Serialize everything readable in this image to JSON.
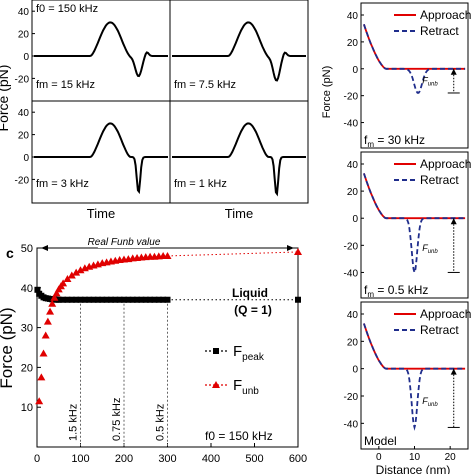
{
  "chart_data": [
    {
      "type": "line",
      "panel": "a",
      "ylabel": "Force (pN)",
      "xlabel": "Time",
      "ylim": [
        -40,
        40
      ],
      "yticks": [
        -40,
        -20,
        0,
        20,
        40
      ],
      "grid": false,
      "f0_label": "f0 = 150 kHz",
      "subplots": [
        {
          "fm_label": "fm = 15 kHz",
          "peak": 30,
          "dip": -18
        },
        {
          "fm_label": "fm = 7.5 kHz",
          "peak": 30,
          "dip": -22
        },
        {
          "fm_label": "fm = 3 kHz",
          "peak": 30,
          "dip": -32
        },
        {
          "fm_label": "fm = 1 kHz",
          "peak": 30,
          "dip": -34
        }
      ]
    },
    {
      "type": "scatter",
      "panel": "c",
      "panel_label": "c",
      "xlabel": "",
      "ylabel": "Force (pN)",
      "xlim": [
        0,
        600
      ],
      "ylim": [
        0,
        50
      ],
      "xticks": [
        0,
        100,
        200,
        300,
        400,
        500,
        600
      ],
      "yticks": [
        10,
        20,
        30,
        40,
        50
      ],
      "annotation_real": "Real Funb value",
      "real_value": 50,
      "medium": "Liquid",
      "q_label": "(Q = 1)",
      "f0_label": "f0 = 150 kHz",
      "freq_markers": [
        {
          "x": 100,
          "label": "1.5 kHz"
        },
        {
          "x": 200,
          "label": "0.75 kHz"
        },
        {
          "x": 300,
          "label": "0.5 kHz"
        }
      ],
      "legend_position": "bottom-right",
      "series": [
        {
          "name": "Fpeak",
          "color": "#000000",
          "marker": "square",
          "x": [
            1,
            5,
            10,
            15,
            20,
            25,
            30,
            35,
            40,
            45,
            50,
            60,
            70,
            80,
            90,
            100,
            110,
            120,
            130,
            140,
            150,
            160,
            170,
            180,
            190,
            200,
            210,
            220,
            230,
            240,
            250,
            260,
            270,
            280,
            290,
            300
          ],
          "y": [
            39.5,
            38.5,
            38,
            37.6,
            37.4,
            37.3,
            37.2,
            37.1,
            37.1,
            37,
            37,
            37,
            37,
            37,
            37,
            37,
            37,
            37,
            37,
            37,
            37,
            37,
            37,
            37,
            37,
            37,
            37,
            37,
            37,
            37,
            37,
            37,
            37,
            37,
            37,
            37
          ],
          "x_end": 600,
          "y_end": 37
        },
        {
          "name": "Funb",
          "color": "#e00000",
          "marker": "triangle",
          "x": [
            5,
            10,
            15,
            20,
            25,
            30,
            35,
            40,
            45,
            50,
            55,
            60,
            70,
            80,
            90,
            100,
            110,
            120,
            130,
            140,
            150,
            160,
            170,
            180,
            190,
            200,
            210,
            220,
            230,
            240,
            250,
            260,
            270,
            280,
            290,
            300
          ],
          "y": [
            11.5,
            17.5,
            23.5,
            28,
            31.5,
            34,
            36,
            37.5,
            38.6,
            39.6,
            40.4,
            41.1,
            42.2,
            43.1,
            43.8,
            44.4,
            44.9,
            45.3,
            45.6,
            45.9,
            46.2,
            46.4,
            46.6,
            46.8,
            47,
            47.1,
            47.2,
            47.4,
            47.5,
            47.6,
            47.7,
            47.8,
            47.8,
            47.9,
            48,
            48
          ],
          "x_end": 600,
          "y_end": 49
        }
      ]
    },
    {
      "type": "line",
      "panel": "b",
      "ylabel": "Force (pN)",
      "xlabel": "Distance (nm)",
      "xlim": [
        -5,
        25
      ],
      "ylim": [
        -50,
        40
      ],
      "xticks": [
        0,
        10,
        20
      ],
      "yticks": [
        -40,
        -20,
        0,
        20,
        40
      ],
      "legend_position": "top-right",
      "subplots": [
        {
          "corner_label": "fm = 30 kHz",
          "dip_x": 11,
          "dip_y": -18,
          "funb_label": "Funb"
        },
        {
          "corner_label": "fm = 0.5 kHz",
          "dip_x": 10,
          "dip_y": -40,
          "funb_label": "Funb"
        },
        {
          "corner_label": "Model",
          "dip_x": 10,
          "dip_y": -43,
          "funb_label": "Funb"
        }
      ],
      "series": [
        {
          "name": "Approach",
          "color": "#e00000",
          "style": "solid"
        },
        {
          "name": "Retract",
          "color": "#1f2d8c",
          "style": "dashed"
        }
      ]
    }
  ]
}
